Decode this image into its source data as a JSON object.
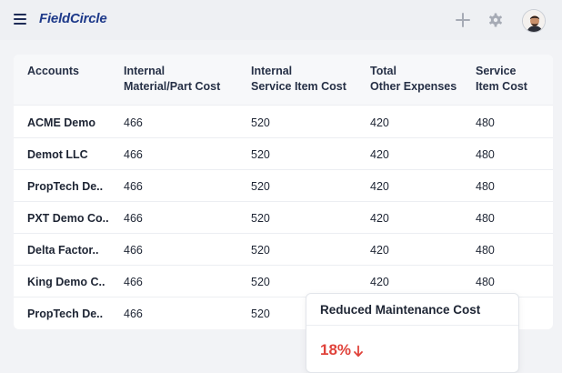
{
  "app": {
    "logo_text": "FieldCircle",
    "accent_color": "#1e3a8a",
    "icons": [
      "menu-icon",
      "plus-icon",
      "gear-icon",
      "avatar"
    ]
  },
  "table": {
    "headers": [
      "Accounts",
      "Internal\nMaterial/Part Cost",
      "Internal\nService Item Cost",
      "Total\nOther Expenses",
      "Service\nItem Cost"
    ],
    "rows": [
      [
        "ACME Demo",
        "466",
        "520",
        "420",
        "480"
      ],
      [
        "Demot LLC",
        "466",
        "520",
        "420",
        "480"
      ],
      [
        "PropTech De..",
        "466",
        "520",
        "420",
        "480"
      ],
      [
        "PXT Demo Co..",
        "466",
        "520",
        "420",
        "480"
      ],
      [
        "Delta Factor..",
        "466",
        "520",
        "420",
        "480"
      ],
      [
        "King Demo C..",
        "466",
        "520",
        "420",
        "480"
      ],
      [
        "PropTech De..",
        "466",
        "520",
        "",
        ""
      ]
    ]
  },
  "popup": {
    "title": "Reduced Maintenance Cost",
    "value": "18%",
    "trend": "down",
    "trend_color": "#e0433b"
  }
}
